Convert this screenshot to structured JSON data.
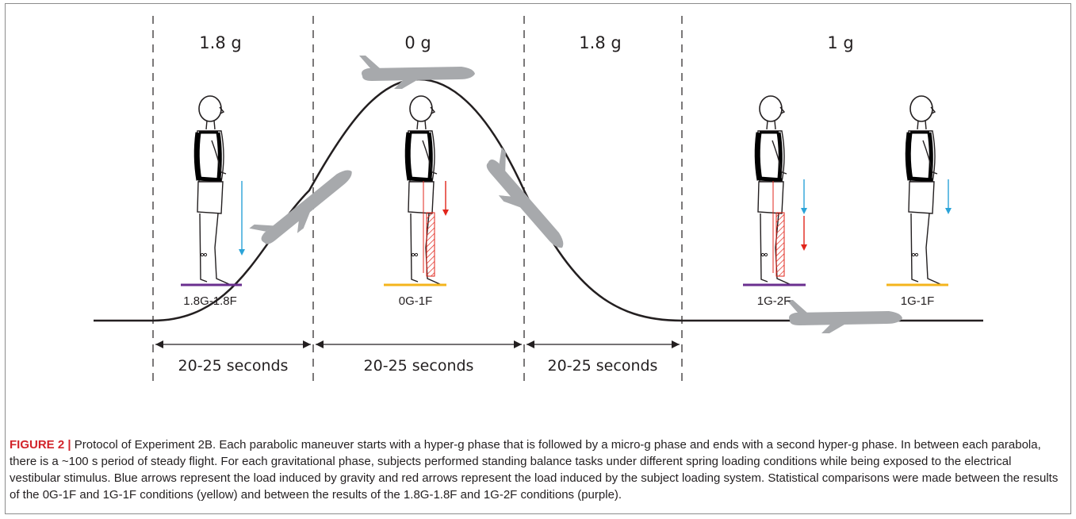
{
  "figure": {
    "phases": [
      "1.8 g",
      "0 g",
      "1.8 g",
      "1 g"
    ],
    "conditions": [
      "1.8G-1.8F",
      "0G-1F",
      "1G-2F",
      "1G-1F"
    ],
    "durations": [
      "20-25 seconds",
      "20-25 seconds",
      "20-25 seconds"
    ],
    "colors": {
      "gravity_arrow": "#2aa3d8",
      "loading_arrow": "#e1251b",
      "yellow_platform": "#f4b41c",
      "purple_platform": "#6a2f8f",
      "aircraft": "#a7a9ac"
    }
  },
  "caption": {
    "label": "FIGURE 2",
    "separator": "|",
    "text": "Protocol of Experiment 2B. Each parabolic maneuver starts with a hyper-g phase that is followed by a micro-g phase and ends with a second hyper-g phase. In between each parabola, there is a ~100 s period of steady flight. For each gravitational phase, subjects performed standing balance tasks under different spring loading conditions while being exposed to the electrical vestibular stimulus. Blue arrows represent the load induced by gravity and red arrows represent the load induced by the subject loading system. Statistical comparisons were made between the results of the 0G-1F and 1G-1F conditions (yellow) and between the results of the 1.8G-1.8F and 1G-2F conditions (purple)."
  }
}
